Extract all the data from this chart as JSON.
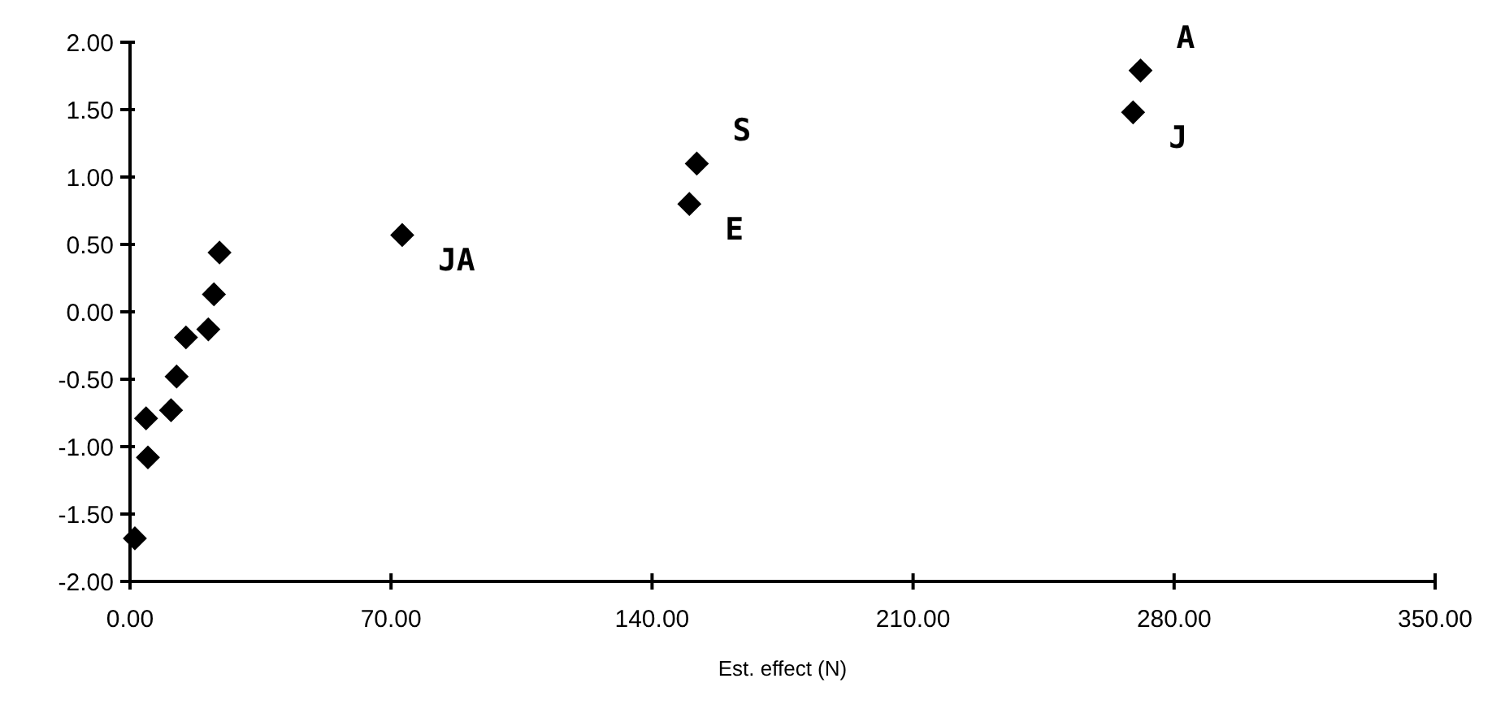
{
  "chart_data": {
    "type": "scatter",
    "xlabel": "Est. effect (N)",
    "x": [
      1.3,
      4.3,
      4.8,
      11,
      12.5,
      15,
      21,
      22.5,
      24,
      73,
      152,
      150,
      271,
      269
    ],
    "values": [
      -1.68,
      -0.79,
      -1.08,
      -0.73,
      -0.48,
      -0.19,
      -0.13,
      0.13,
      0.44,
      0.57,
      1.1,
      0.8,
      1.79,
      1.48
    ],
    "color": "#000000",
    "marker": "diamond",
    "grid": false,
    "xlim": [
      0,
      350
    ],
    "ylim": [
      -2,
      2
    ],
    "xticks": [
      {
        "value": 0,
        "label": "0.00"
      },
      {
        "value": 70,
        "label": "70.00"
      },
      {
        "value": 140,
        "label": "140.00"
      },
      {
        "value": 210,
        "label": "210.00"
      },
      {
        "value": 280,
        "label": "280.00"
      },
      {
        "value": 350,
        "label": "350.00"
      }
    ],
    "yticks": [
      {
        "value": -2,
        "label": "-2.00"
      },
      {
        "value": -1.5,
        "label": "-1.50"
      },
      {
        "value": -1,
        "label": "-1.00"
      },
      {
        "value": -0.5,
        "label": "-0.50"
      },
      {
        "value": 0,
        "label": "0.00"
      },
      {
        "value": 0.5,
        "label": "0.50"
      },
      {
        "value": 1,
        "label": "1.00"
      },
      {
        "value": 1.5,
        "label": "1.50"
      },
      {
        "value": 2,
        "label": "2.00"
      }
    ],
    "annotations": [
      {
        "text": "JA",
        "x": 73,
        "y": 0.57
      },
      {
        "text": "S",
        "x": 152,
        "y": 1.1
      },
      {
        "text": "E",
        "x": 150,
        "y": 0.8
      },
      {
        "text": "A",
        "x": 271,
        "y": 1.79
      },
      {
        "text": "J",
        "x": 269,
        "y": 1.48
      }
    ]
  }
}
